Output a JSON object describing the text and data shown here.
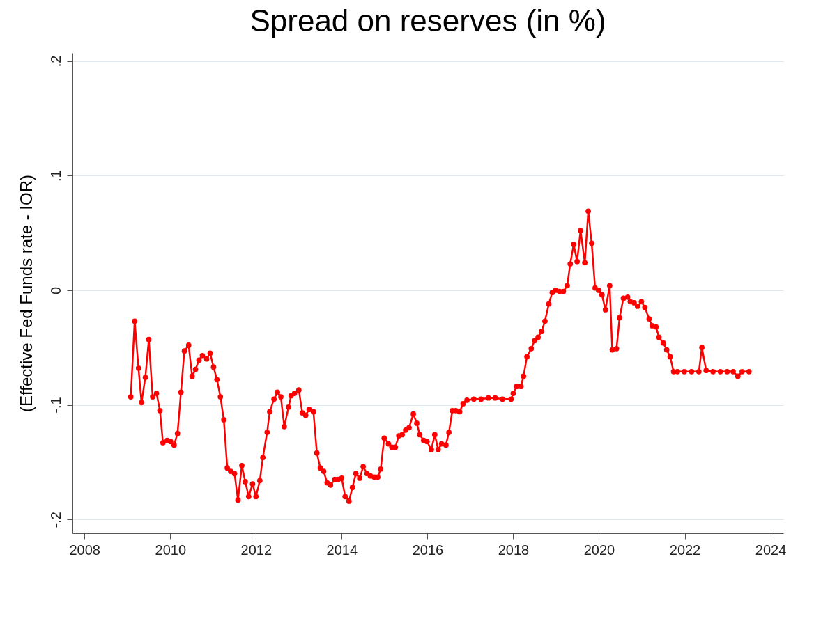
{
  "chart_data": {
    "type": "line",
    "title": "Spread on reserves (in %)",
    "ylabel": "(Effective Fed Funds rate - IOR)",
    "xlim": [
      2007.72,
      2024.3
    ],
    "xticks": [
      2008,
      2010,
      2012,
      2014,
      2016,
      2018,
      2020,
      2022,
      2024
    ],
    "ylim": [
      -0.212,
      0.207
    ],
    "yticks": [
      {
        "value": -0.2,
        "label": "-.2"
      },
      {
        "value": -0.1,
        "label": "-.1"
      },
      0,
      {
        "value": 0.1,
        "label": ".1"
      },
      {
        "value": 0.2,
        "label": ".2"
      }
    ],
    "grid": "y",
    "marker": "circle",
    "line_style": "solid",
    "series": [
      {
        "color": "#ff0000",
        "x": [
          2009.08,
          2009.17,
          2009.26,
          2009.33,
          2009.42,
          2009.5,
          2009.59,
          2009.68,
          2009.76,
          2009.83,
          2009.93,
          2010.01,
          2010.09,
          2010.17,
          2010.25,
          2010.33,
          2010.43,
          2010.51,
          2010.59,
          2010.67,
          2010.75,
          2010.85,
          2010.93,
          2011.01,
          2011.09,
          2011.17,
          2011.25,
          2011.33,
          2011.41,
          2011.5,
          2011.58,
          2011.67,
          2011.75,
          2011.83,
          2011.92,
          2012.0,
          2012.09,
          2012.16,
          2012.26,
          2012.32,
          2012.42,
          2012.5,
          2012.58,
          2012.66,
          2012.76,
          2012.82,
          2012.9,
          2013.0,
          2013.08,
          2013.16,
          2013.24,
          2013.34,
          2013.42,
          2013.5,
          2013.58,
          2013.66,
          2013.74,
          2013.84,
          2013.92,
          2014.0,
          2014.08,
          2014.17,
          2014.25,
          2014.33,
          2014.42,
          2014.5,
          2014.59,
          2014.67,
          2014.76,
          2014.84,
          2014.91,
          2014.99,
          2015.09,
          2015.17,
          2015.25,
          2015.33,
          2015.41,
          2015.49,
          2015.57,
          2015.67,
          2015.75,
          2015.82,
          2015.91,
          2015.99,
          2016.09,
          2016.17,
          2016.25,
          2016.33,
          2016.43,
          2016.5,
          2016.58,
          2016.66,
          2016.75,
          2016.83,
          2016.92,
          2017.08,
          2017.25,
          2017.42,
          2017.58,
          2017.75,
          2017.95,
          2018.0,
          2018.08,
          2018.18,
          2018.24,
          2018.32,
          2018.42,
          2018.5,
          2018.58,
          2018.66,
          2018.74,
          2018.83,
          2018.91,
          2018.99,
          2019.08,
          2019.17,
          2019.26,
          2019.33,
          2019.41,
          2019.49,
          2019.57,
          2019.67,
          2019.75,
          2019.83,
          2019.91,
          2019.99,
          2020.07,
          2020.15,
          2020.25,
          2020.31,
          2020.41,
          2020.48,
          2020.57,
          2020.67,
          2020.73,
          2020.82,
          2020.9,
          2020.99,
          2021.07,
          2021.17,
          2021.24,
          2021.33,
          2021.4,
          2021.5,
          2021.58,
          2021.66,
          2021.74,
          2021.83,
          2021.99,
          2022.16,
          2022.33,
          2022.4,
          2022.5,
          2022.66,
          2022.83,
          2022.99,
          2023.13,
          2023.24,
          2023.34,
          2023.5
        ],
        "values": [
          -0.093,
          -0.027,
          -0.068,
          -0.098,
          -0.076,
          -0.043,
          -0.093,
          -0.09,
          -0.105,
          -0.133,
          -0.131,
          -0.132,
          -0.135,
          -0.125,
          -0.089,
          -0.053,
          -0.048,
          -0.075,
          -0.069,
          -0.061,
          -0.057,
          -0.06,
          -0.055,
          -0.067,
          -0.078,
          -0.093,
          -0.113,
          -0.155,
          -0.158,
          -0.16,
          -0.183,
          -0.153,
          -0.167,
          -0.18,
          -0.169,
          -0.18,
          -0.166,
          -0.146,
          -0.124,
          -0.106,
          -0.095,
          -0.089,
          -0.093,
          -0.119,
          -0.102,
          -0.092,
          -0.09,
          -0.087,
          -0.107,
          -0.109,
          -0.104,
          -0.106,
          -0.142,
          -0.155,
          -0.158,
          -0.168,
          -0.17,
          -0.165,
          -0.165,
          -0.164,
          -0.18,
          -0.184,
          -0.172,
          -0.16,
          -0.164,
          -0.154,
          -0.16,
          -0.162,
          -0.163,
          -0.163,
          -0.156,
          -0.129,
          -0.134,
          -0.137,
          -0.137,
          -0.127,
          -0.126,
          -0.122,
          -0.12,
          -0.108,
          -0.116,
          -0.126,
          -0.131,
          -0.132,
          -0.139,
          -0.126,
          -0.139,
          -0.134,
          -0.135,
          -0.124,
          -0.105,
          -0.105,
          -0.106,
          -0.099,
          -0.096,
          -0.095,
          -0.095,
          -0.094,
          -0.094,
          -0.095,
          -0.095,
          -0.09,
          -0.084,
          -0.084,
          -0.075,
          -0.058,
          -0.051,
          -0.044,
          -0.041,
          -0.036,
          -0.027,
          -0.012,
          -0.002,
          0.0,
          -0.001,
          -0.001,
          0.004,
          0.023,
          0.04,
          0.025,
          0.052,
          0.024,
          0.069,
          0.041,
          0.002,
          0.0,
          -0.004,
          -0.017,
          0.004,
          -0.052,
          -0.051,
          -0.024,
          -0.007,
          -0.006,
          -0.01,
          -0.011,
          -0.014,
          -0.01,
          -0.015,
          -0.025,
          -0.031,
          -0.032,
          -0.041,
          -0.046,
          -0.052,
          -0.058,
          -0.071,
          -0.071,
          -0.071,
          -0.071,
          -0.071,
          -0.05,
          -0.07,
          -0.071,
          -0.071,
          -0.071,
          -0.071,
          -0.075,
          -0.071,
          -0.071
        ]
      }
    ]
  }
}
